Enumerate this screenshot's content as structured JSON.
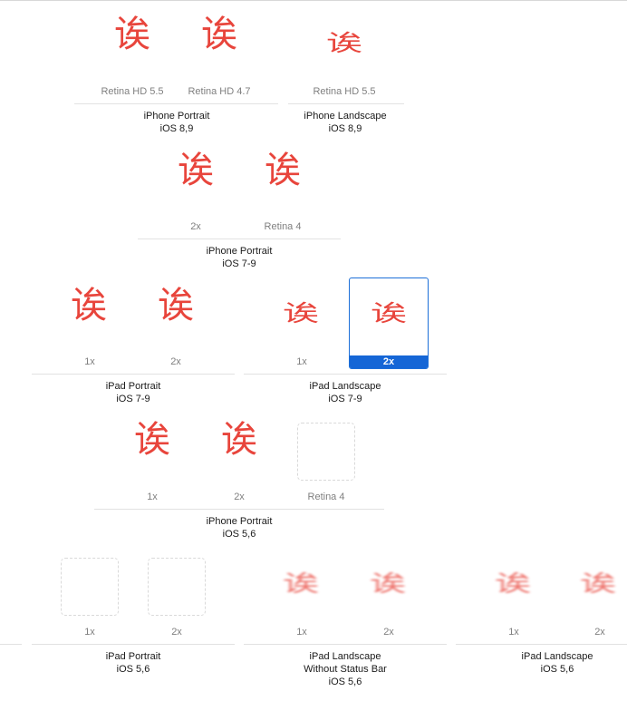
{
  "glyph": "诶",
  "colors": {
    "icon": "#e8453c",
    "selection": "#1566d6"
  },
  "groups": {
    "iphone_portrait_ios89": {
      "title": "iPhone Portrait",
      "subtitle": "iOS 8,9",
      "slots": [
        "Retina HD 5.5",
        "Retina HD 4.7"
      ]
    },
    "iphone_landscape_ios89": {
      "title": "iPhone Landscape",
      "subtitle": "iOS 8,9",
      "slots": [
        "Retina HD 5.5"
      ]
    },
    "iphone_portrait_ios79": {
      "title": "iPhone Portrait",
      "subtitle": "iOS 7-9",
      "slots": [
        "2x",
        "Retina 4"
      ]
    },
    "ipad_portrait_ios79": {
      "title": "iPad Portrait",
      "subtitle": "iOS 7-9",
      "slots": [
        "1x",
        "2x"
      ]
    },
    "ipad_landscape_ios79": {
      "title": "iPad Landscape",
      "subtitle": "iOS 7-9",
      "slots": [
        "1x",
        "2x"
      ]
    },
    "iphone_portrait_ios56": {
      "title": "iPhone Portrait",
      "subtitle": "iOS 5,6",
      "slots": [
        "1x",
        "2x",
        "Retina 4"
      ]
    },
    "ipad_portrait_ios56": {
      "title": "iPad Portrait",
      "subtitle": "iOS 5,6",
      "slots": [
        "1x",
        "2x"
      ]
    },
    "ipad_landscape_nostatus_ios56": {
      "title": "iPad Landscape",
      "title2": "Without Status Bar",
      "subtitle": "iOS 5,6",
      "slots": [
        "1x",
        "2x"
      ]
    },
    "ipad_landscape_ios56": {
      "title": "iPad Landscape",
      "subtitle": "iOS 5,6",
      "slots": [
        "1x",
        "2x"
      ]
    }
  }
}
